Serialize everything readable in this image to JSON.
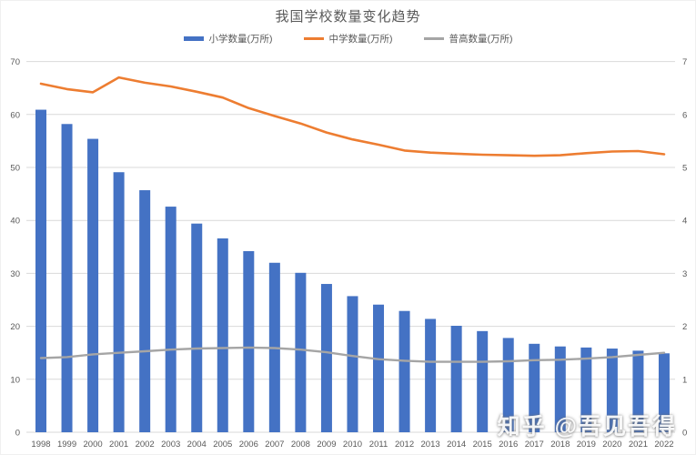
{
  "page": {
    "title": "我国学校数量变化趋势",
    "watermark": "知乎 @吾见吾得"
  },
  "colors": {
    "primary_bar": "#4472C4",
    "middle_line": "#ED7D31",
    "highschool_line": "#A5A5A5",
    "gridline": "#D9D9D9",
    "axis_text": "#595959",
    "title_text": "#595959"
  },
  "legend": [
    {
      "label": "小学数量(万所)",
      "color": "#4472C4",
      "type": "bar"
    },
    {
      "label": "中学数量(万所)",
      "color": "#ED7D31",
      "type": "line"
    },
    {
      "label": "普高数量(万所)",
      "color": "#A5A5A5",
      "type": "line"
    }
  ],
  "chart_data": {
    "type": "bar",
    "subtype": "combo-bar-line-dual-axis",
    "title": "我国学校数量变化趋势",
    "xlabel": "",
    "ylabel_left": "",
    "ylabel_right": "",
    "grid": true,
    "legend_position": "top",
    "categories": [
      "1998",
      "1999",
      "2000",
      "2001",
      "2002",
      "2003",
      "2004",
      "2005",
      "2006",
      "2007",
      "2008",
      "2009",
      "2010",
      "2011",
      "2012",
      "2013",
      "2014",
      "2015",
      "2016",
      "2017",
      "2018",
      "2019",
      "2020",
      "2021",
      "2022"
    ],
    "left_axis": {
      "range": [
        0,
        70
      ],
      "ticks": [
        0,
        10,
        20,
        30,
        40,
        50,
        60,
        70
      ]
    },
    "right_axis": {
      "range": [
        0,
        7
      ],
      "ticks": [
        0,
        1,
        2,
        3,
        4,
        5,
        6,
        7
      ]
    },
    "series": [
      {
        "name": "小学数量(万所)",
        "type": "bar",
        "axis": "left",
        "color": "#4472C4",
        "values": [
          60.9,
          58.2,
          55.4,
          49.1,
          45.7,
          42.6,
          39.4,
          36.6,
          34.2,
          32.0,
          30.1,
          28.0,
          25.7,
          24.1,
          22.9,
          21.4,
          20.1,
          19.1,
          17.8,
          16.7,
          16.2,
          16.0,
          15.8,
          15.4,
          14.9
        ]
      },
      {
        "name": "中学数量(万所)",
        "type": "line",
        "axis": "right",
        "color": "#ED7D31",
        "values": [
          6.58,
          6.48,
          6.42,
          6.7,
          6.6,
          6.53,
          6.43,
          6.32,
          6.12,
          5.97,
          5.83,
          5.66,
          5.53,
          5.43,
          5.32,
          5.28,
          5.26,
          5.24,
          5.23,
          5.22,
          5.23,
          5.27,
          5.3,
          5.31,
          5.25
        ]
      },
      {
        "name": "普高数量(万所)",
        "type": "line",
        "axis": "right",
        "color": "#A5A5A5",
        "values": [
          1.4,
          1.42,
          1.47,
          1.5,
          1.53,
          1.56,
          1.58,
          1.59,
          1.6,
          1.59,
          1.56,
          1.51,
          1.44,
          1.38,
          1.35,
          1.33,
          1.33,
          1.33,
          1.34,
          1.36,
          1.37,
          1.39,
          1.42,
          1.46,
          1.5
        ]
      }
    ]
  }
}
